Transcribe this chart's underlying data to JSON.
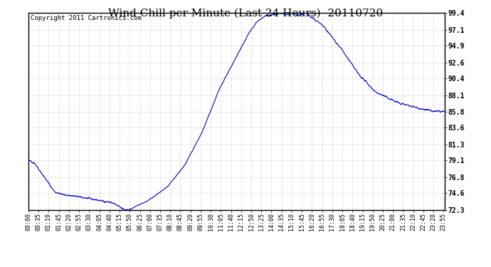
{
  "title": "Wind Chill per Minute (Last 24 Hours)  20110720",
  "copyright_text": "Copyright 2011 Cartronics.com",
  "line_color": "#0000cc",
  "background_color": "#ffffff",
  "grid_color": "#bbbbbb",
  "yticks": [
    72.3,
    74.6,
    76.8,
    79.1,
    81.3,
    83.6,
    85.8,
    88.1,
    90.4,
    92.6,
    94.9,
    97.1,
    99.4
  ],
  "ymin": 72.3,
  "ymax": 99.4,
  "xtick_interval": 35,
  "title_fontsize": 11,
  "copyright_fontsize": 6.5,
  "tick_fontsize": 6,
  "ytick_fontsize": 7
}
